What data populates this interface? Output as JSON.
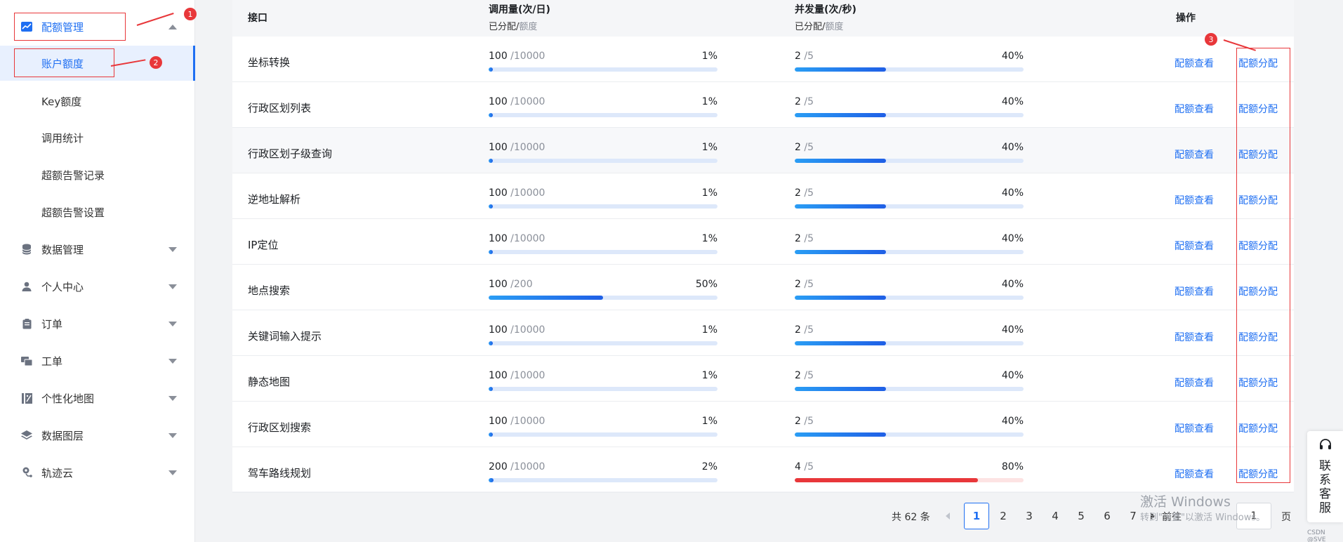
{
  "sidebar": {
    "parent_active": {
      "label": "配额管理",
      "icon": "chart-icon"
    },
    "sub_items": [
      {
        "label": "账户额度",
        "active": true
      },
      {
        "label": "Key额度",
        "active": false
      },
      {
        "label": "调用统计",
        "active": false
      },
      {
        "label": "超额告警记录",
        "active": false
      },
      {
        "label": "超额告警设置",
        "active": false
      }
    ],
    "groups": [
      {
        "label": "数据管理",
        "icon": "database-icon"
      },
      {
        "label": "个人中心",
        "icon": "user-icon"
      },
      {
        "label": "订单",
        "icon": "clipboard-icon"
      },
      {
        "label": "工单",
        "icon": "ticket-icon"
      },
      {
        "label": "个性化地图",
        "icon": "custom-map-icon"
      },
      {
        "label": "数据图层",
        "icon": "layers-icon"
      },
      {
        "label": "轨迹云",
        "icon": "location-track-icon"
      }
    ]
  },
  "annotations": {
    "badge1": "1",
    "badge2": "2",
    "badge3": "3"
  },
  "table": {
    "headers": {
      "api": "接口",
      "calls": "调用量(次/日)",
      "calls_sub_used": "已分配",
      "calls_sub_sep": "/",
      "calls_sub_quota": "额度",
      "concurrency": "并发量(次/秒)",
      "conc_sub_used": "已分配",
      "conc_sub_sep": "/",
      "conc_sub_quota": "额度",
      "ops": "操作"
    },
    "op_view": "配额查看",
    "op_assign": "配额分配",
    "rows": [
      {
        "name": "坐标转换",
        "calls_used": "100",
        "calls_quota": " /10000",
        "calls_pct": "1%",
        "calls_ratio": 0.01,
        "conc_used": "2",
        "conc_quota": " /5",
        "conc_pct": "40%",
        "conc_ratio": 0.4
      },
      {
        "name": "行政区划列表",
        "calls_used": "100",
        "calls_quota": " /10000",
        "calls_pct": "1%",
        "calls_ratio": 0.01,
        "conc_used": "2",
        "conc_quota": " /5",
        "conc_pct": "40%",
        "conc_ratio": 0.4
      },
      {
        "name": "行政区划子级查询",
        "calls_used": "100",
        "calls_quota": " /10000",
        "calls_pct": "1%",
        "calls_ratio": 0.01,
        "conc_used": "2",
        "conc_quota": " /5",
        "conc_pct": "40%",
        "conc_ratio": 0.4
      },
      {
        "name": "逆地址解析",
        "calls_used": "100",
        "calls_quota": " /10000",
        "calls_pct": "1%",
        "calls_ratio": 0.01,
        "conc_used": "2",
        "conc_quota": " /5",
        "conc_pct": "40%",
        "conc_ratio": 0.4
      },
      {
        "name": "IP定位",
        "calls_used": "100",
        "calls_quota": " /10000",
        "calls_pct": "1%",
        "calls_ratio": 0.01,
        "conc_used": "2",
        "conc_quota": " /5",
        "conc_pct": "40%",
        "conc_ratio": 0.4
      },
      {
        "name": "地点搜索",
        "calls_used": "100",
        "calls_quota": " /200",
        "calls_pct": "50%",
        "calls_ratio": 0.5,
        "conc_used": "2",
        "conc_quota": " /5",
        "conc_pct": "40%",
        "conc_ratio": 0.4
      },
      {
        "name": "关键词输入提示",
        "calls_used": "100",
        "calls_quota": " /10000",
        "calls_pct": "1%",
        "calls_ratio": 0.01,
        "conc_used": "2",
        "conc_quota": " /5",
        "conc_pct": "40%",
        "conc_ratio": 0.4
      },
      {
        "name": "静态地图",
        "calls_used": "100",
        "calls_quota": " /10000",
        "calls_pct": "1%",
        "calls_ratio": 0.01,
        "conc_used": "2",
        "conc_quota": " /5",
        "conc_pct": "40%",
        "conc_ratio": 0.4
      },
      {
        "name": "行政区划搜索",
        "calls_used": "100",
        "calls_quota": " /10000",
        "calls_pct": "1%",
        "calls_ratio": 0.01,
        "conc_used": "2",
        "conc_quota": " /5",
        "conc_pct": "40%",
        "conc_ratio": 0.4
      },
      {
        "name": "驾车路线规划",
        "calls_used": "200",
        "calls_quota": " /10000",
        "calls_pct": "2%",
        "calls_ratio": 0.02,
        "conc_used": "4",
        "conc_quota": " /5",
        "conc_pct": "80%",
        "conc_ratio": 0.8,
        "conc_alert": true
      }
    ]
  },
  "pagination": {
    "total": "共 62 条",
    "pages": [
      "1",
      "2",
      "3",
      "4",
      "5",
      "6",
      "7"
    ],
    "current": "1",
    "goto_label": "前往",
    "goto_value": "1",
    "page_suffix": "页"
  },
  "watermark": {
    "line1": "激活 Windows",
    "line2": "转到\"设置\"以激活 Windows。"
  },
  "service": {
    "label": "联系客服"
  },
  "csdn": "CSDN @SVE"
}
